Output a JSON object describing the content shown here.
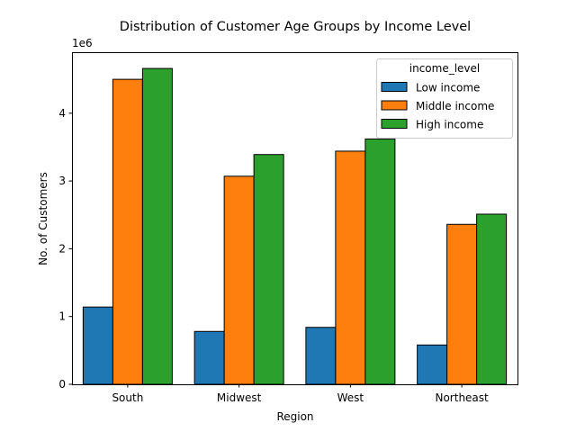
{
  "chart_data": {
    "type": "bar",
    "title": "Distribution of Customer Age Groups by Income Level",
    "xlabel": "Region",
    "ylabel": "No. of Customers",
    "offset_label": "1e6",
    "categories": [
      "South",
      "Midwest",
      "West",
      "Northeast"
    ],
    "yticks": [
      0,
      1,
      2,
      3,
      4
    ],
    "ytick_labels": [
      "0",
      "1",
      "2",
      "3",
      "4"
    ],
    "ylim": [
      0,
      4.9
    ],
    "grid": false,
    "legend": {
      "title": "income_level",
      "placement": "top-right"
    },
    "series": [
      {
        "name": "Low income",
        "color": "#1f77b4",
        "values": [
          1.14,
          0.78,
          0.84,
          0.58
        ]
      },
      {
        "name": "Middle income",
        "color": "#ff7f0e",
        "values": [
          4.5,
          3.07,
          3.44,
          2.36
        ]
      },
      {
        "name": "High income",
        "color": "#2ca02c",
        "values": [
          4.66,
          3.39,
          3.62,
          2.51
        ]
      }
    ]
  }
}
